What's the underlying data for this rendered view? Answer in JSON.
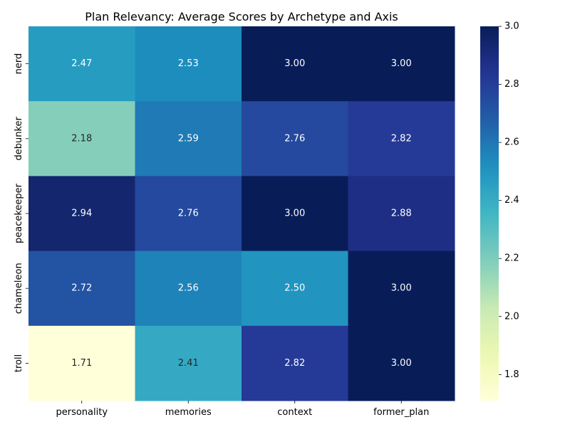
{
  "chart_data": {
    "type": "heatmap",
    "title": "Plan Relevancy: Average Scores by Archetype and Axis",
    "xlabel": "",
    "ylabel": "",
    "x_categories": [
      "personality",
      "memories",
      "context",
      "former_plan"
    ],
    "y_categories": [
      "nerd",
      "debunker",
      "peacekeeper",
      "chameleon",
      "troll"
    ],
    "values": [
      [
        2.47,
        2.53,
        3.0,
        3.0
      ],
      [
        2.18,
        2.59,
        2.76,
        2.82
      ],
      [
        2.94,
        2.76,
        3.0,
        2.88
      ],
      [
        2.72,
        2.56,
        2.5,
        3.0
      ],
      [
        1.71,
        2.41,
        2.82,
        3.0
      ]
    ],
    "value_labels": [
      [
        "2.47",
        "2.53",
        "3.00",
        "3.00"
      ],
      [
        "2.18",
        "2.59",
        "2.76",
        "2.82"
      ],
      [
        "2.94",
        "2.76",
        "3.00",
        "2.88"
      ],
      [
        "2.72",
        "2.56",
        "2.50",
        "3.00"
      ],
      [
        "1.71",
        "2.41",
        "2.82",
        "3.00"
      ]
    ],
    "colorscale": "YlGnBu",
    "colorbar": {
      "range": [
        1.71,
        3.0
      ],
      "ticks": [
        1.8,
        2.0,
        2.2,
        2.4,
        2.6,
        2.8,
        3.0
      ],
      "tick_labels": [
        "1.8",
        "2.0",
        "2.2",
        "2.4",
        "2.6",
        "2.8",
        "3.0"
      ]
    },
    "grid": false,
    "legend": "colorbar-right"
  }
}
